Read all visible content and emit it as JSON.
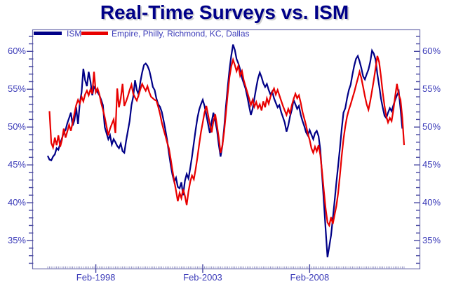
{
  "title": "Real-Time Surveys vs. ISM",
  "legend": [
    {
      "label": "ISM",
      "color": "#000087"
    },
    {
      "label": "Empire, Philly, Richmond, KC, Dallas",
      "color": "#e80000"
    }
  ],
  "colors": {
    "title": "#000088",
    "axis_border": "#6b6bac",
    "tick": "#4444a0",
    "minor_month_tick": "#8080b8",
    "label_text": "#3a3ab8",
    "ism_line": "#000087",
    "surveys_line": "#e80000",
    "background": "#ffffff"
  },
  "chart_data": {
    "type": "line",
    "title": "Real-Time Surveys vs. ISM",
    "xlabel": "",
    "ylabel": "",
    "x_unit": "month",
    "x_start": "1995-11",
    "x_tick_labels": [
      "Feb-1998",
      "Feb-2003",
      "Feb-2008"
    ],
    "x_tick_month_indices": [
      27,
      87,
      147
    ],
    "y_ticks_major": [
      35,
      40,
      45,
      50,
      55,
      60
    ],
    "y_minor_step": 1,
    "y_tick_suffix": "%",
    "ylim": [
      31.3,
      62.9
    ],
    "grid": false,
    "legend_position": "top-left-inside",
    "series": [
      {
        "name": "ISM",
        "color": "#000087",
        "start_month_index": 0,
        "values": [
          46.2,
          45.7,
          45.6,
          46.1,
          46.4,
          47.2,
          47.0,
          47.8,
          48.5,
          49.3,
          49.6,
          50.5,
          51.2,
          51.9,
          50.2,
          50.9,
          52.6,
          50.4,
          53.1,
          54.6,
          57.7,
          56.2,
          55.4,
          57.3,
          56.0,
          54.2,
          55.3,
          55.0,
          54.6,
          54.2,
          53.6,
          52.9,
          50.0,
          49.2,
          48.4,
          48.9,
          47.7,
          48.4,
          48.0,
          47.5,
          47.2,
          47.8,
          46.8,
          46.6,
          48.2,
          49.5,
          50.8,
          52.9,
          54.0,
          56.2,
          54.9,
          54.3,
          56.0,
          57.2,
          58.2,
          58.4,
          58.1,
          57.5,
          56.5,
          55.3,
          54.9,
          53.8,
          53.0,
          52.7,
          52.0,
          50.9,
          49.7,
          48.3,
          46.6,
          45.0,
          43.7,
          42.8,
          43.3,
          42.1,
          41.9,
          42.7,
          41.0,
          42.9,
          43.8,
          43.2,
          44.6,
          46.1,
          47.9,
          49.6,
          51.2,
          52.3,
          53.0,
          53.6,
          52.8,
          51.6,
          50.4,
          49.2,
          50.7,
          51.9,
          50.8,
          49.6,
          47.7,
          46.1,
          47.5,
          49.9,
          52.7,
          55.2,
          57.6,
          59.4,
          60.9,
          60.2,
          59.0,
          58.4,
          57.6,
          56.5,
          55.8,
          55.1,
          54.0,
          52.8,
          51.6,
          52.4,
          53.8,
          55.2,
          56.4,
          57.2,
          56.6,
          55.8,
          55.3,
          55.7,
          54.9,
          54.3,
          54.7,
          53.8,
          53.2,
          52.6,
          52.9,
          52.0,
          51.3,
          50.6,
          49.4,
          50.2,
          51.4,
          52.3,
          53.6,
          53.0,
          52.4,
          52.8,
          51.6,
          50.8,
          50.1,
          49.3,
          48.9,
          49.6,
          49.0,
          48.4,
          49.2,
          49.5,
          48.8,
          47.0,
          43.5,
          40.0,
          36.4,
          32.8,
          34.2,
          35.7,
          37.9,
          40.2,
          42.7,
          44.9,
          47.3,
          49.8,
          51.9,
          52.5,
          53.8,
          54.9,
          55.6,
          56.9,
          58.1,
          59.0,
          59.4,
          58.7,
          57.8,
          56.7,
          56.3,
          57.0,
          57.6,
          58.6,
          60.1,
          59.7,
          58.9,
          57.0,
          55.5,
          53.8,
          52.6,
          51.5,
          51.2,
          51.9,
          52.5,
          52.1,
          52.9,
          53.6,
          54.2,
          54.7,
          52.4,
          49.8
        ]
      },
      {
        "name": "Empire, Philly, Richmond, KC, Dallas",
        "color": "#e80000",
        "start_month_index": 1,
        "values": [
          52.1,
          47.9,
          47.3,
          48.6,
          47.6,
          48.9,
          47.4,
          48.3,
          49.8,
          48.6,
          49.4,
          50.3,
          49.5,
          50.6,
          51.8,
          52.9,
          53.6,
          53.1,
          54.0,
          53.4,
          54.3,
          54.8,
          54.2,
          55.0,
          54.4,
          57.3,
          54.6,
          55.1,
          54.3,
          53.2,
          52.3,
          51.3,
          50.1,
          48.9,
          49.8,
          50.4,
          51.0,
          49.2,
          55.1,
          52.6,
          53.8,
          55.7,
          52.8,
          53.4,
          54.1,
          54.9,
          55.6,
          54.4,
          53.9,
          53.5,
          54.2,
          55.0,
          55.7,
          55.2,
          54.8,
          55.4,
          54.6,
          54.0,
          53.8,
          53.6,
          53.5,
          52.7,
          51.8,
          50.6,
          49.7,
          48.9,
          48.0,
          47.2,
          45.8,
          44.3,
          42.9,
          41.6,
          40.2,
          41.3,
          40.6,
          41.8,
          40.9,
          39.7,
          41.5,
          42.8,
          43.6,
          43.1,
          44.4,
          46.0,
          47.7,
          49.3,
          50.6,
          51.9,
          52.8,
          51.6,
          50.4,
          49.3,
          50.8,
          51.7,
          50.2,
          48.6,
          46.6,
          47.5,
          49.4,
          51.8,
          54.3,
          56.6,
          58.0,
          58.9,
          58.2,
          57.4,
          58.1,
          56.8,
          57.4,
          56.2,
          55.4,
          54.6,
          53.8,
          52.9,
          53.6,
          52.7,
          53.3,
          52.5,
          53.0,
          52.2,
          53.4,
          52.6,
          53.8,
          53.1,
          54.0,
          54.6,
          55.1,
          54.3,
          54.9,
          54.2,
          53.5,
          52.8,
          52.2,
          51.6,
          52.4,
          51.8,
          52.9,
          53.7,
          54.4,
          53.8,
          54.2,
          53.2,
          52.0,
          51.1,
          50.2,
          49.1,
          48.3,
          47.2,
          46.6,
          47.4,
          46.8,
          47.6,
          46.3,
          44.0,
          41.5,
          39.2,
          37.4,
          37.0,
          38.1,
          37.2,
          38.4,
          39.6,
          41.3,
          43.7,
          46.2,
          48.4,
          50.1,
          51.4,
          52.3,
          53.0,
          53.8,
          54.6,
          55.5,
          56.4,
          57.3,
          56.5,
          55.3,
          54.1,
          53.0,
          52.3,
          53.4,
          54.8,
          56.2,
          57.8,
          59.4,
          58.6,
          56.7,
          54.6,
          52.8,
          51.4,
          50.6,
          51.2,
          50.8,
          52.3,
          54.1,
          55.7,
          54.3,
          53.6,
          51.2,
          47.6
        ]
      }
    ]
  }
}
